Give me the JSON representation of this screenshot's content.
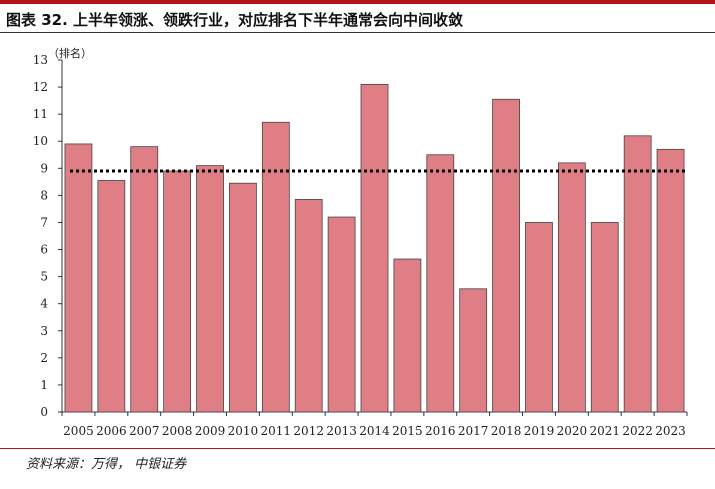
{
  "figure": {
    "title": "图表 32. 上半年领涨、领跌行业，对应排名下半年通常会向中间收敛",
    "source": "资料来源：万得， 中银证券"
  },
  "colors": {
    "bar_fill": "#e07e86",
    "bar_stroke": "#444444",
    "reference_line": "#000000",
    "accent": "#b5121b"
  },
  "chart_data": {
    "type": "bar",
    "title": "上半年领涨、领跌行业，对应排名下半年通常会向中间收敛",
    "ylabel": "（排名）",
    "xlabel": "",
    "categories": [
      "2005",
      "2006",
      "2007",
      "2008",
      "2009",
      "2010",
      "2011",
      "2012",
      "2013",
      "2014",
      "2015",
      "2016",
      "2017",
      "2018",
      "2019",
      "2020",
      "2021",
      "2022",
      "2023"
    ],
    "values": [
      9.9,
      8.55,
      9.8,
      8.9,
      9.1,
      8.45,
      10.7,
      7.85,
      7.2,
      12.1,
      5.65,
      9.5,
      4.55,
      11.55,
      7.0,
      9.2,
      7.0,
      10.2,
      9.7
    ],
    "ylim": [
      0,
      13
    ],
    "yticks": [
      0,
      1,
      2,
      3,
      4,
      5,
      6,
      7,
      8,
      9,
      10,
      11,
      12,
      13
    ],
    "reference_line": {
      "value": 8.9,
      "style": "dotted"
    },
    "grid": false,
    "legend": "none"
  }
}
